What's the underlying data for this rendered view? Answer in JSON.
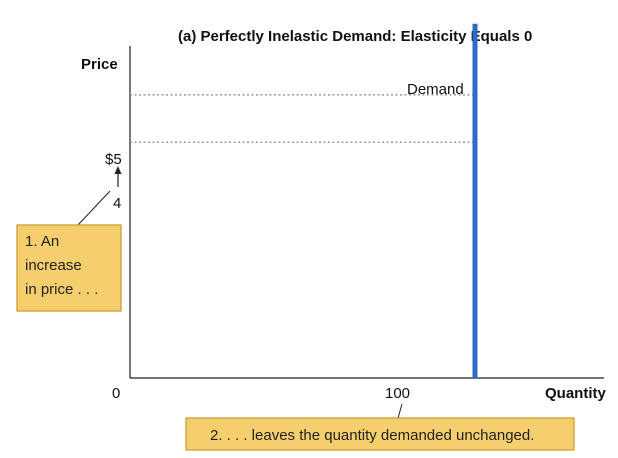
{
  "chart_data": {
    "type": "line",
    "title": "(a) Perfectly Inelastic Demand: Elasticity Equals 0",
    "xlabel": "Quantity",
    "ylabel": "Price",
    "x_ticks": [
      "0",
      "100"
    ],
    "y_ticks": [
      {
        "value": 5,
        "label": "$5"
      },
      {
        "value": 4,
        "label": "4"
      }
    ],
    "xlim": [
      0,
      120
    ],
    "ylim": [
      0,
      7
    ],
    "grid": false,
    "series": [
      {
        "name": "Demand",
        "color": "#2b6cc4",
        "points": [
          {
            "x": 100,
            "y": 0
          },
          {
            "x": 100,
            "y": 6.5
          }
        ]
      }
    ],
    "reference_lines": [
      {
        "price": 5,
        "to_quantity": 100
      },
      {
        "price": 4,
        "to_quantity": 100
      }
    ],
    "annotations": [
      {
        "id": "price-increase",
        "lines": [
          "1. An",
          "increase",
          "in price . . ."
        ]
      },
      {
        "id": "quantity-unchanged",
        "lines": [
          "2. . . . leaves the quantity demanded unchanged."
        ]
      }
    ],
    "colors": {
      "annotation_fill": "#f5cf6e",
      "annotation_border": "#c99a2e",
      "reference_line": "#8a8a8a"
    }
  }
}
